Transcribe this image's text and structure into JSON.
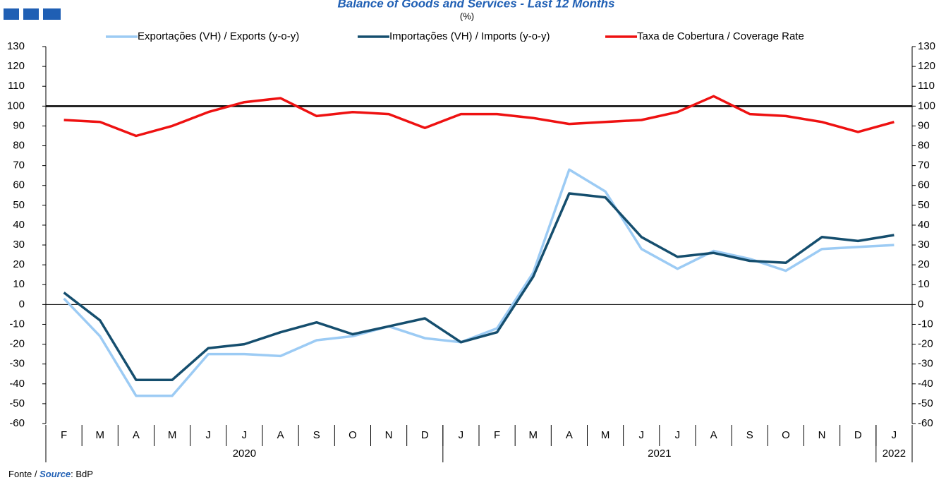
{
  "chart_data": {
    "type": "line",
    "title": "Balance of Goods and Services - Last 12 Months",
    "subtitle": "(%)",
    "categories": [
      "F",
      "M",
      "A",
      "M",
      "J",
      "J",
      "A",
      "S",
      "O",
      "N",
      "D",
      "J",
      "F",
      "M",
      "A",
      "M",
      "J",
      "J",
      "A",
      "S",
      "O",
      "N",
      "D",
      "J"
    ],
    "year_groups": [
      {
        "label": "2020",
        "count": 11
      },
      {
        "label": "2021",
        "count": 12
      },
      {
        "label": "2022",
        "count": 1
      }
    ],
    "series": [
      {
        "name": "Exportações (VH) / Exports (y-o-y)",
        "color": "#9ccbf4",
        "values": [
          3,
          -16,
          -46,
          -46,
          -25,
          -25,
          -26,
          -18,
          -16,
          -11,
          -17,
          -19,
          -12,
          16,
          68,
          57,
          28,
          18,
          27,
          23,
          17,
          28,
          29,
          30
        ]
      },
      {
        "name": "Importações (VH) / Imports (y-o-y)",
        "color": "#154e6e",
        "values": [
          6,
          -8,
          -38,
          -38,
          -22,
          -20,
          -14,
          -9,
          -15,
          -11,
          -7,
          -19,
          -14,
          14,
          56,
          54,
          34,
          24,
          26,
          22,
          21,
          34,
          32,
          35
        ]
      },
      {
        "name": "Taxa de Cobertura / Coverage Rate",
        "color": "#ee1111",
        "values": [
          93,
          92,
          85,
          90,
          97,
          102,
          104,
          95,
          97,
          96,
          89,
          96,
          96,
          94,
          91,
          92,
          93,
          97,
          105,
          96,
          95,
          92,
          87,
          92
        ]
      }
    ],
    "reference_line": 100,
    "ylim": [
      -60,
      130
    ],
    "yticks": [
      -60,
      -50,
      -40,
      -30,
      -20,
      -10,
      0,
      10,
      20,
      30,
      40,
      50,
      60,
      70,
      80,
      90,
      100,
      110,
      120,
      130
    ],
    "y2lim": [
      -60,
      130
    ],
    "source": {
      "prefix": "Fonte / ",
      "label": "Source",
      "suffix": ": BdP"
    }
  }
}
